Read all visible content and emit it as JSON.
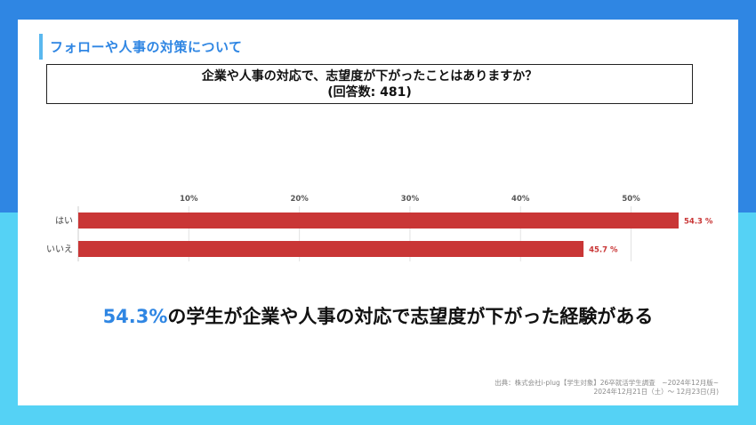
{
  "section_title": "フォローや人事の対策について",
  "question": {
    "line1": "企業や人事の対応で、志望度が下がったことはありますか？",
    "line2": "(回答数: 481)"
  },
  "chart_data": {
    "type": "bar",
    "orientation": "horizontal",
    "categories": [
      "はい",
      "いいえ"
    ],
    "values": [
      54.3,
      45.7
    ],
    "value_labels": [
      "54.3 %",
      "45.7 %"
    ],
    "x_ticks": [
      10,
      20,
      30,
      40,
      50
    ],
    "x_tick_labels": [
      "10%",
      "20%",
      "30%",
      "40%",
      "50%"
    ],
    "xlim": [
      0,
      54.3
    ],
    "bar_color": "#c93636",
    "label_color": "#c93636",
    "grid": true,
    "title": "",
    "xlabel": "",
    "ylabel": ""
  },
  "headline": {
    "accent": "54.3%",
    "rest": "の学生が企業や人事の対応で志望度が下がった経験がある"
  },
  "source": {
    "line1": "出典：株式会社i-plug【学生対象】26卒就活学生調査　~2024年12月版~",
    "line2": "2024年12月21日（土）～ 12月23日(月)"
  },
  "colors": {
    "accent_blue": "#2f86e3",
    "light_blue": "#55d2f5",
    "section_bar": "#5ab8ef"
  }
}
